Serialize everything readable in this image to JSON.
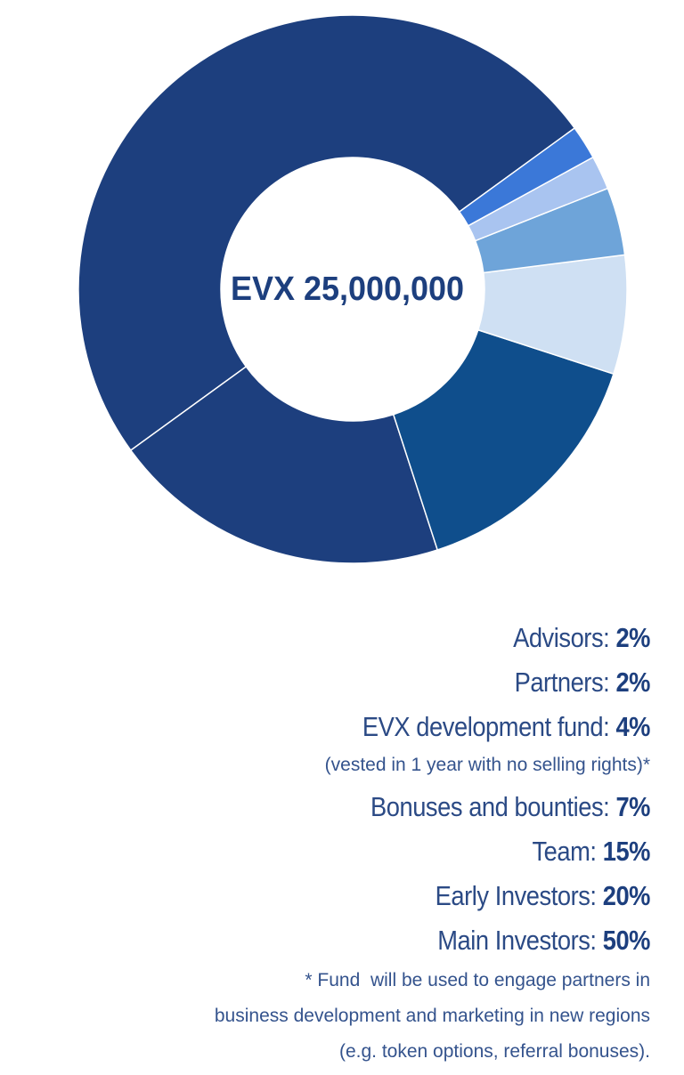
{
  "chart_data": {
    "type": "donut",
    "center_label": "EVX 25,000,000",
    "categories": [
      "Advisors:",
      "Partners:",
      "EVX development fund:",
      "Bonuses and bounties:",
      "Team:",
      "Early Investors:",
      "Main Investors:"
    ],
    "values": [
      2,
      2,
      4,
      7,
      15,
      20,
      50
    ],
    "value_labels": [
      "2%",
      "2%",
      "4%",
      "7%",
      "15%",
      "20%",
      "50%"
    ],
    "colors": [
      "#3b78d8",
      "#a9c4f0",
      "#6ea4d9",
      "#cfe0f3",
      "#0f4e8c",
      "#1d3f7e",
      "#1d3f7e"
    ],
    "annotations": [
      "(vested in 1 year with no selling rights)*"
    ],
    "footnote": [
      "* Fund  will be used to engage partners in",
      "business development and marketing in new regions",
      "(e.g. token options, referral bonuses)."
    ]
  }
}
